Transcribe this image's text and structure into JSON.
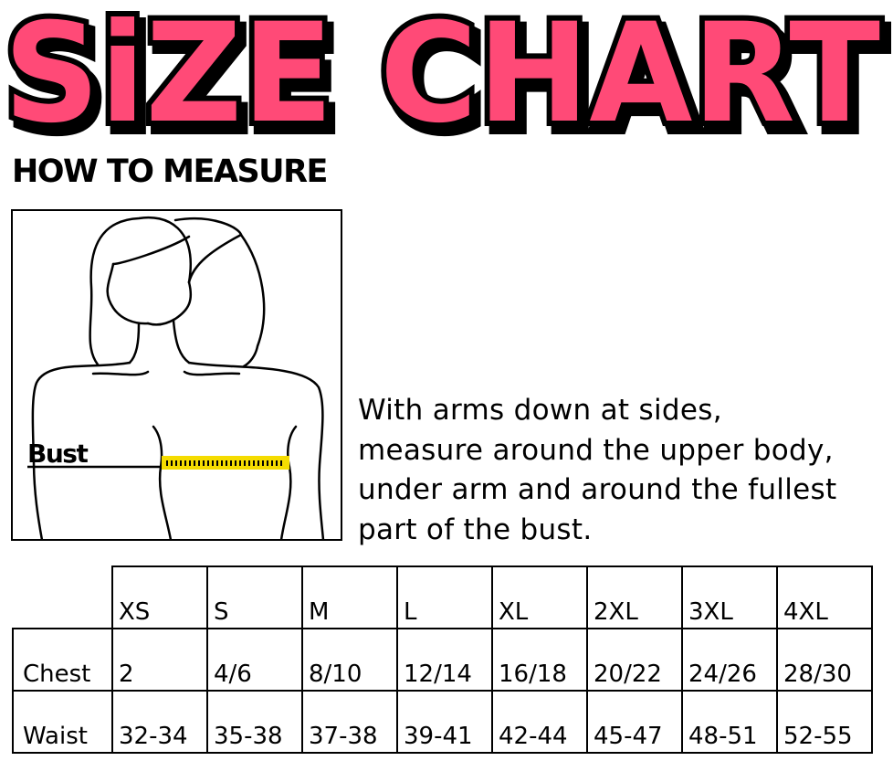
{
  "title": "SiZE CHART",
  "colors": {
    "title_fill": "#FF4A77",
    "title_outline": "#000000",
    "tape": "#F5DC00"
  },
  "how_to_measure": {
    "heading": "HOW TO MEASURE",
    "figure_label": "Bust",
    "instructions": [
      "With arms down at sides,",
      "measure around the upper body,",
      "under arm and around the fullest",
      "part of the bust."
    ]
  },
  "size_table": {
    "sizes": [
      "XS",
      "S",
      "M",
      "L",
      "XL",
      "2XL",
      "3XL",
      "4XL"
    ],
    "rows": [
      {
        "label": "Chest",
        "values": [
          "2",
          "4/6",
          "8/10",
          "12/14",
          "16/18",
          "20/22",
          "24/26",
          "28/30"
        ]
      },
      {
        "label": "Waist",
        "values": [
          "32-34",
          "35-38",
          "37-38",
          "39-41",
          "42-44",
          "45-47",
          "48-51",
          "52-55"
        ]
      }
    ]
  }
}
